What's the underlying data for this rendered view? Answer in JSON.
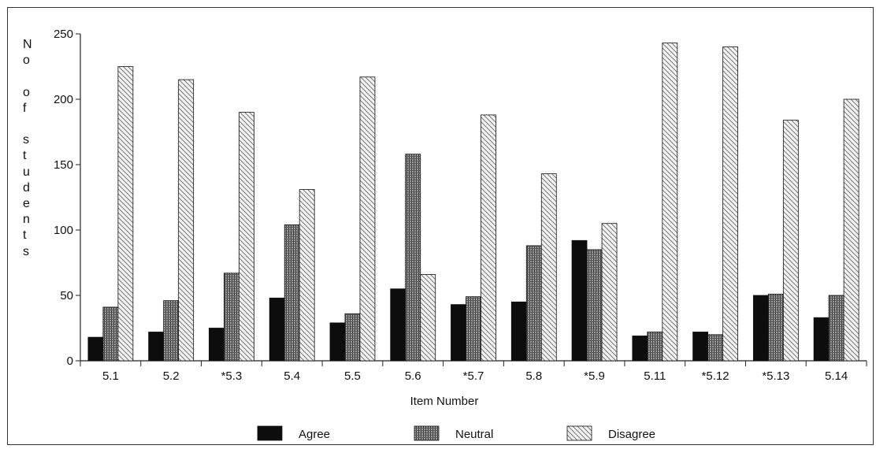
{
  "chart_data": {
    "type": "bar",
    "categories": [
      "5.1",
      "5.2",
      "*5.3",
      "5.4",
      "5.5",
      "5.6",
      "*5.7",
      "5.8",
      "*5.9",
      "5.11",
      "*5.12",
      "*5.13",
      "5.14"
    ],
    "series": [
      {
        "name": "Agree",
        "values": [
          18,
          22,
          25,
          48,
          29,
          55,
          43,
          45,
          92,
          19,
          22,
          50,
          33
        ]
      },
      {
        "name": "Neutral",
        "values": [
          41,
          46,
          67,
          104,
          36,
          158,
          49,
          88,
          85,
          22,
          20,
          51,
          50
        ]
      },
      {
        "name": "Disagree",
        "values": [
          225,
          215,
          190,
          131,
          217,
          66,
          188,
          143,
          105,
          243,
          240,
          184,
          200
        ]
      }
    ],
    "xlabel": "Item Number",
    "ylabel": "No of students",
    "ylim": [
      0,
      250
    ],
    "yticks": [
      0,
      50,
      100,
      150,
      200,
      250
    ],
    "grid": false,
    "legend_position": "bottom"
  }
}
